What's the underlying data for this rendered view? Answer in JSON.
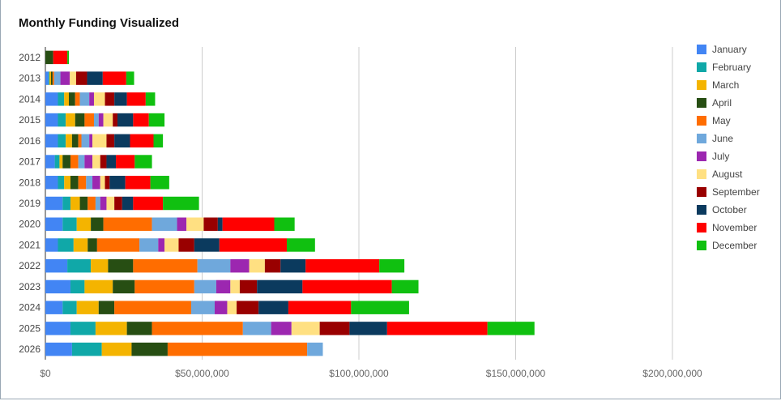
{
  "chart_data": {
    "type": "bar",
    "orientation": "horizontal",
    "stacked": true,
    "title": "Monthly Funding Visualized",
    "xlabel": "",
    "ylabel": "",
    "xlim": [
      0,
      200000000
    ],
    "x_ticks": [
      0,
      50000000,
      100000000,
      150000000,
      200000000
    ],
    "x_tick_labels": [
      "$0",
      "$50,000,000",
      "$100,000,000",
      "$150,000,000",
      "$200,000,000"
    ],
    "grid": true,
    "legend_position": "right",
    "categories": [
      "2012",
      "2013",
      "2014",
      "2015",
      "2016",
      "2017",
      "2018",
      "2019",
      "2020",
      "2021",
      "2022",
      "2023",
      "2024",
      "2025",
      "2026"
    ],
    "series": [
      {
        "name": "January",
        "color": "#4285f4",
        "values": [
          0,
          1000000,
          4000000,
          4000000,
          4000000,
          3000000,
          4000000,
          5500000,
          5500000,
          4000000,
          7000000,
          8000000,
          5500000,
          8000000,
          8500000
        ]
      },
      {
        "name": "February",
        "color": "#10a8a8",
        "values": [
          0,
          300000,
          2000000,
          2500000,
          2500000,
          1500000,
          2000000,
          2500000,
          4500000,
          5000000,
          7500000,
          4500000,
          4500000,
          8000000,
          9500000
        ]
      },
      {
        "name": "March",
        "color": "#f4b400",
        "values": [
          0,
          500000,
          1500000,
          3000000,
          2000000,
          1000000,
          2000000,
          3000000,
          4500000,
          4500000,
          5500000,
          9000000,
          7000000,
          10000000,
          9500000
        ]
      },
      {
        "name": "April",
        "color": "#274e13",
        "values": [
          2500000,
          500000,
          2000000,
          3000000,
          2000000,
          2500000,
          2500000,
          2500000,
          4000000,
          3000000,
          8000000,
          7000000,
          5000000,
          8000000,
          11500000
        ]
      },
      {
        "name": "May",
        "color": "#ff6d00",
        "values": [
          0,
          500000,
          1500000,
          3000000,
          1000000,
          2500000,
          2500000,
          2500000,
          15500000,
          13500000,
          20500000,
          19000000,
          24500000,
          29000000,
          44500000
        ]
      },
      {
        "name": "June",
        "color": "#6fa8dc",
        "values": [
          0,
          2000000,
          3000000,
          1500000,
          2500000,
          2000000,
          2000000,
          1500000,
          8000000,
          6000000,
          10500000,
          7000000,
          7500000,
          9000000,
          5000000
        ]
      },
      {
        "name": "July",
        "color": "#9c27b0",
        "values": [
          0,
          3000000,
          1500000,
          1500000,
          1000000,
          2500000,
          2500000,
          2000000,
          3000000,
          2000000,
          6000000,
          4500000,
          4000000,
          6500000,
          0
        ]
      },
      {
        "name": "August",
        "color": "#ffe082",
        "values": [
          0,
          2000000,
          3500000,
          3000000,
          4500000,
          2500000,
          1500000,
          2500000,
          5500000,
          4500000,
          5000000,
          3000000,
          3000000,
          9000000,
          0
        ]
      },
      {
        "name": "September",
        "color": "#990000",
        "values": [
          0,
          3500000,
          3000000,
          1500000,
          2500000,
          2000000,
          1500000,
          2500000,
          4500000,
          5000000,
          5000000,
          5500000,
          7000000,
          9500000,
          0
        ]
      },
      {
        "name": "October",
        "color": "#0b3a5e",
        "values": [
          0,
          5000000,
          4000000,
          5000000,
          5000000,
          3000000,
          5000000,
          3500000,
          1500000,
          8000000,
          8000000,
          14500000,
          9500000,
          12000000,
          0
        ]
      },
      {
        "name": "November",
        "color": "#ff0000",
        "values": [
          4500000,
          7500000,
          6000000,
          5000000,
          7500000,
          6000000,
          8000000,
          9500000,
          16500000,
          21500000,
          23500000,
          28500000,
          20000000,
          32000000,
          0
        ]
      },
      {
        "name": "December",
        "color": "#10c010",
        "values": [
          500000,
          2500000,
          3000000,
          5000000,
          3000000,
          5500000,
          6000000,
          11500000,
          6500000,
          9000000,
          8000000,
          8500000,
          18500000,
          15000000,
          0
        ]
      }
    ]
  }
}
